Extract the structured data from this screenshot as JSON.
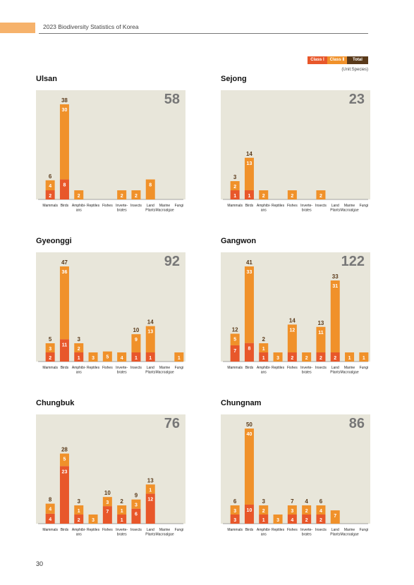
{
  "header": {
    "title": "2023 Biodiversity Statistics of Korea"
  },
  "legend": {
    "class1": "Class Ⅰ",
    "class2": "Class Ⅱ",
    "total": "Total"
  },
  "unit_note": "(Unit:Species)",
  "page_number": "30",
  "colors": {
    "class1": "#E8572A",
    "class2": "#F0912A",
    "total": "#5A3A1A",
    "panel": "#E8E6DA"
  },
  "chart_data": [
    {
      "type": "bar",
      "stacked": true,
      "title": "Ulsan",
      "total": "58",
      "categories": [
        "Mammals",
        "Birds",
        "Amphibi-ans",
        "Reptiles",
        "Fishes",
        "Inverte-brates",
        "Insects",
        "Land Plants",
        "Marine Macroalgae",
        "Fungi"
      ],
      "series": [
        {
          "name": "Class Ⅰ",
          "values": [
            2,
            8,
            0,
            0,
            0,
            0,
            0,
            0,
            0,
            0
          ]
        },
        {
          "name": "Class Ⅱ",
          "values": [
            4,
            30,
            2,
            0,
            0,
            2,
            2,
            8,
            0,
            0
          ]
        }
      ],
      "totals": [
        6,
        38,
        null,
        null,
        null,
        null,
        null,
        null,
        null,
        null
      ]
    },
    {
      "type": "bar",
      "stacked": true,
      "title": "Sejong",
      "total": "23",
      "categories": [
        "Mammals",
        "Birds",
        "Amphibi-ans",
        "Reptiles",
        "Fishes",
        "Inverte-brates",
        "Insects",
        "Land Plants",
        "Marine Macroalgae",
        "Fungi"
      ],
      "series": [
        {
          "name": "Class Ⅰ",
          "values": [
            1,
            1,
            0,
            0,
            0,
            0,
            0,
            0,
            0,
            0
          ]
        },
        {
          "name": "Class Ⅱ",
          "values": [
            2,
            13,
            2,
            0,
            2,
            0,
            2,
            0,
            0,
            0
          ]
        }
      ],
      "totals": [
        3,
        14,
        null,
        null,
        null,
        null,
        null,
        null,
        null,
        null
      ]
    },
    {
      "type": "bar",
      "stacked": true,
      "title": "Gyeonggi",
      "total": "92",
      "categories": [
        "Mammals",
        "Birds",
        "Amphibi-ans",
        "Reptiles",
        "Fishes",
        "Inverte-brates",
        "Insects",
        "Land Plants",
        "Marine Macroalgae",
        "Fungi"
      ],
      "series": [
        {
          "name": "Class Ⅰ",
          "values": [
            2,
            11,
            1,
            0,
            0,
            0,
            1,
            1,
            0,
            0
          ]
        },
        {
          "name": "Class Ⅱ",
          "values": [
            3,
            36,
            2,
            3,
            5,
            4,
            9,
            13,
            0,
            1
          ]
        }
      ],
      "totals": [
        5,
        47,
        3,
        null,
        null,
        null,
        10,
        14,
        null,
        null
      ]
    },
    {
      "type": "bar",
      "stacked": true,
      "title": "Gangwon",
      "total": "122",
      "categories": [
        "Mammals",
        "Birds",
        "Amphibi-ans",
        "Reptiles",
        "Fishes",
        "Inverte-brates",
        "Insects",
        "Land Plants",
        "Marine Macroalgae",
        "Fungi"
      ],
      "series": [
        {
          "name": "Class Ⅰ",
          "values": [
            7,
            8,
            1,
            0,
            2,
            0,
            2,
            2,
            0,
            0
          ]
        },
        {
          "name": "Class Ⅱ",
          "values": [
            5,
            33,
            1,
            3,
            12,
            2,
            11,
            31,
            1,
            1
          ]
        }
      ],
      "totals": [
        12,
        41,
        2,
        null,
        14,
        null,
        13,
        33,
        null,
        null
      ]
    },
    {
      "type": "bar",
      "stacked": true,
      "title": "Chungbuk",
      "total": "76",
      "categories": [
        "Mammals",
        "Birds",
        "Amphibi-ans",
        "Reptiles",
        "Fishes",
        "Inverte-brates",
        "Insects",
        "Land Plants",
        "Marine Macroalgae",
        "Fungi"
      ],
      "series": [
        {
          "name": "Class Ⅰ",
          "values": [
            4,
            23,
            2,
            0,
            7,
            1,
            6,
            12,
            0,
            0
          ]
        },
        {
          "name": "Class Ⅱ",
          "values": [
            4,
            5,
            1,
            3,
            3,
            1,
            3,
            1,
            0,
            0
          ]
        }
      ],
      "totals": [
        8,
        28,
        3,
        null,
        10,
        2,
        9,
        13,
        null,
        null
      ]
    },
    {
      "type": "bar",
      "stacked": true,
      "title": "Chungnam",
      "total": "86",
      "categories": [
        "Mammals",
        "Birds",
        "Amphibi-ans",
        "Reptiles",
        "Fishes",
        "Inverte-brates",
        "Insects",
        "Land Plants",
        "Marine Macroalgae",
        "Fungi"
      ],
      "series": [
        {
          "name": "Class Ⅰ",
          "values": [
            3,
            10,
            1,
            0,
            4,
            2,
            2,
            0,
            0,
            0
          ]
        },
        {
          "name": "Class Ⅱ",
          "values": [
            3,
            40,
            2,
            3,
            3,
            2,
            4,
            7,
            0,
            0
          ]
        }
      ],
      "totals": [
        6,
        50,
        3,
        null,
        7,
        4,
        6,
        null,
        null,
        null
      ]
    }
  ]
}
